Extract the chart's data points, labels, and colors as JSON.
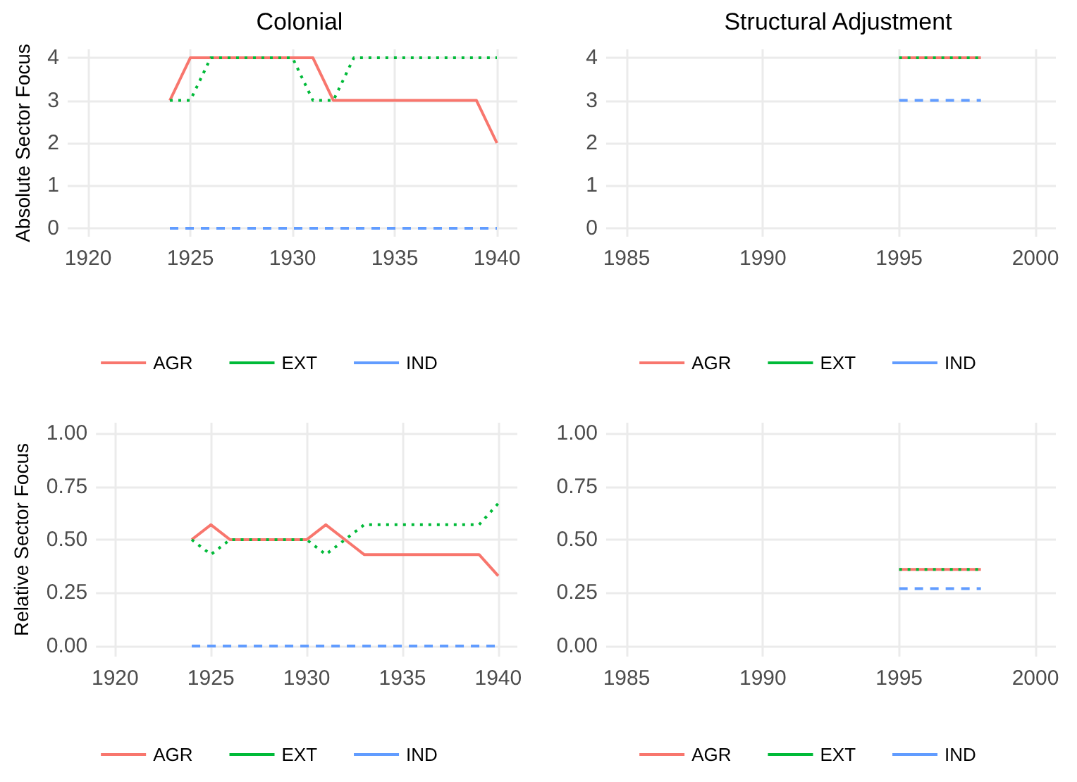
{
  "chart_data": [
    {
      "type": "line",
      "title": "Colonial",
      "ylabel": "Absolute Sector Focus",
      "x": [
        1924,
        1925,
        1926,
        1927,
        1928,
        1929,
        1930,
        1931,
        1932,
        1933,
        1934,
        1935,
        1936,
        1937,
        1938,
        1939,
        1940
      ],
      "series": [
        {
          "name": "AGR",
          "color": "#f8766d",
          "line_style": "solid",
          "values": [
            3,
            4,
            4,
            4,
            4,
            4,
            4,
            4,
            3,
            3,
            3,
            3,
            3,
            3,
            3,
            3,
            2
          ]
        },
        {
          "name": "EXT",
          "color": "#00ba38",
          "line_style": "dotted",
          "values": [
            3,
            3,
            4,
            4,
            4,
            4,
            4,
            3,
            3,
            4,
            4,
            4,
            4,
            4,
            4,
            4,
            4
          ]
        },
        {
          "name": "IND",
          "color": "#619cff",
          "line_style": "dashed",
          "values": [
            0,
            0,
            0,
            0,
            0,
            0,
            0,
            0,
            0,
            0,
            0,
            0,
            0,
            0,
            0,
            0,
            0
          ]
        }
      ],
      "xlim": [
        1919,
        1941
      ],
      "xticks": [
        1920,
        1925,
        1930,
        1935,
        1940
      ],
      "ylim": [
        -0.2,
        4.2
      ],
      "yticks": [
        0,
        1,
        2,
        3,
        4
      ],
      "grid": true,
      "legend": "bottom",
      "marker": "none"
    },
    {
      "type": "line",
      "title": "Structural Adjustment",
      "x": [
        1995,
        1996,
        1997,
        1998
      ],
      "series": [
        {
          "name": "AGR",
          "color": "#f8766d",
          "line_style": "solid",
          "values": [
            4,
            4,
            4,
            4
          ]
        },
        {
          "name": "EXT",
          "color": "#00ba38",
          "line_style": "dotted",
          "values": [
            4,
            4,
            4,
            4
          ]
        },
        {
          "name": "IND",
          "color": "#619cff",
          "line_style": "dashed",
          "values": [
            3,
            3,
            3,
            3
          ]
        }
      ],
      "xlim": [
        1984.25,
        2000.75
      ],
      "xticks": [
        1985,
        1990,
        1995,
        2000
      ],
      "ylim": [
        -0.2,
        4.2
      ],
      "yticks": [
        0,
        1,
        2,
        3,
        4
      ],
      "grid": true,
      "legend": "bottom",
      "marker": "none"
    },
    {
      "type": "line",
      "ylabel": "Relative Sector Focus",
      "x": [
        1924,
        1925,
        1926,
        1927,
        1928,
        1929,
        1930,
        1931,
        1932,
        1933,
        1934,
        1935,
        1936,
        1937,
        1938,
        1939,
        1940
      ],
      "series": [
        {
          "name": "AGR",
          "color": "#f8766d",
          "line_style": "solid",
          "values": [
            0.5,
            0.57,
            0.5,
            0.5,
            0.5,
            0.5,
            0.5,
            0.57,
            0.5,
            0.43,
            0.43,
            0.43,
            0.43,
            0.43,
            0.43,
            0.43,
            0.33
          ]
        },
        {
          "name": "EXT",
          "color": "#00ba38",
          "line_style": "dotted",
          "values": [
            0.5,
            0.43,
            0.5,
            0.5,
            0.5,
            0.5,
            0.5,
            0.43,
            0.5,
            0.57,
            0.57,
            0.57,
            0.57,
            0.57,
            0.57,
            0.57,
            0.67
          ]
        },
        {
          "name": "IND",
          "color": "#619cff",
          "line_style": "dashed",
          "values": [
            0,
            0,
            0,
            0,
            0,
            0,
            0,
            0,
            0,
            0,
            0,
            0,
            0,
            0,
            0,
            0,
            0
          ]
        }
      ],
      "xlim": [
        1919,
        1941
      ],
      "xticks": [
        1920,
        1925,
        1930,
        1935,
        1940
      ],
      "ylim": [
        -0.05,
        1.05
      ],
      "yticks": [
        {
          "value": 0,
          "label": "0.00"
        },
        {
          "value": 0.25,
          "label": "0.25"
        },
        {
          "value": 0.5,
          "label": "0.50"
        },
        {
          "value": 0.75,
          "label": "0.75"
        },
        {
          "value": 1,
          "label": "1.00"
        }
      ],
      "grid": true,
      "legend": "bottom",
      "marker": "none"
    },
    {
      "type": "line",
      "x": [
        1995,
        1996,
        1997,
        1998
      ],
      "series": [
        {
          "name": "AGR",
          "color": "#f8766d",
          "line_style": "solid",
          "values": [
            0.36,
            0.36,
            0.36,
            0.36
          ]
        },
        {
          "name": "EXT",
          "color": "#00ba38",
          "line_style": "dotted",
          "values": [
            0.36,
            0.36,
            0.36,
            0.36
          ]
        },
        {
          "name": "IND",
          "color": "#619cff",
          "line_style": "dashed",
          "values": [
            0.27,
            0.27,
            0.27,
            0.27
          ]
        }
      ],
      "xlim": [
        1984.25,
        2000.75
      ],
      "xticks": [
        1985,
        1990,
        1995,
        2000
      ],
      "ylim": [
        -0.05,
        1.05
      ],
      "yticks": [
        {
          "value": 0,
          "label": "0.00"
        },
        {
          "value": 0.25,
          "label": "0.25"
        },
        {
          "value": 0.5,
          "label": "0.50"
        },
        {
          "value": 0.75,
          "label": "0.75"
        },
        {
          "value": 1,
          "label": "1.00"
        }
      ],
      "grid": true,
      "legend": "bottom",
      "marker": "none"
    }
  ]
}
